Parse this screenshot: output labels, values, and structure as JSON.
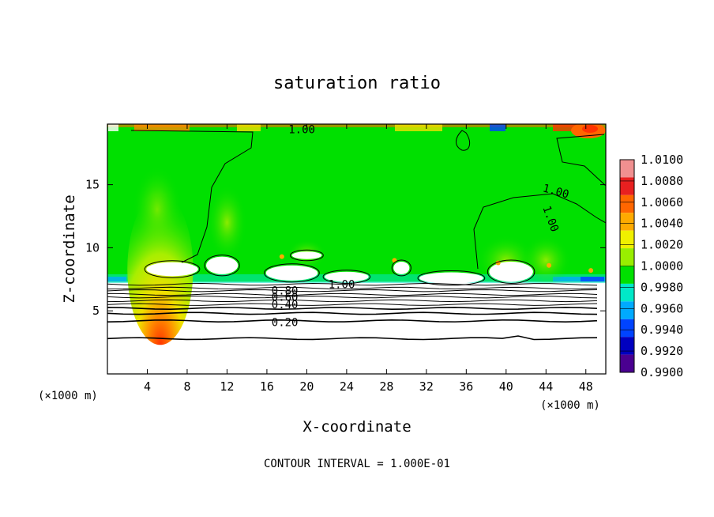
{
  "chart_data": {
    "type": "heatmap",
    "title": "saturation ratio",
    "xlabel": "X-coordinate",
    "ylabel": "Z-coordinate",
    "x_unit": "(×1000 m)",
    "y_unit": "(×1000 m)",
    "footer": "CONTOUR INTERVAL = 1.000E-01",
    "xlim": [
      0,
      50
    ],
    "ylim": [
      0,
      19.8
    ],
    "x_ticks": [
      4,
      8,
      12,
      16,
      20,
      24,
      28,
      32,
      36,
      40,
      44,
      48
    ],
    "y_ticks": [
      5,
      10,
      15
    ],
    "colorbar": {
      "levels": [
        "1.0100",
        "1.0080",
        "1.0060",
        "1.0040",
        "1.0020",
        "1.0000",
        "0.9980",
        "0.9960",
        "0.9940",
        "0.9920",
        "0.9900"
      ],
      "colors": [
        "#f09090",
        "#e82020",
        "#ff6600",
        "#ffaa00",
        "#f0f000",
        "#99ee00",
        "#00e000",
        "#00e8c8",
        "#00aaff",
        "#0044ff",
        "#0000c0",
        "#4a0090"
      ]
    },
    "contour_labels": [
      {
        "text": "1.00",
        "x": 19.5,
        "z": 19.4
      },
      {
        "text": "1.00",
        "x": 45,
        "z": 14.5
      },
      {
        "text": "1.00",
        "x": 44.5,
        "z": 12.3
      },
      {
        "text": "1.00",
        "x": 23.5,
        "z": 7.1
      },
      {
        "text": "0.80",
        "x": 17.8,
        "z": 6.6
      },
      {
        "text": "0.60",
        "x": 17.8,
        "z": 6.1
      },
      {
        "text": "0.40",
        "x": 17.8,
        "z": 5.5
      },
      {
        "text": "0.20",
        "x": 17.8,
        "z": 4.1
      }
    ],
    "stable_layer_contours_z": [
      7.1,
      6.8,
      6.6,
      6.3,
      6.1,
      5.8,
      5.5,
      5.2,
      4.8,
      4.2,
      2.8
    ]
  }
}
